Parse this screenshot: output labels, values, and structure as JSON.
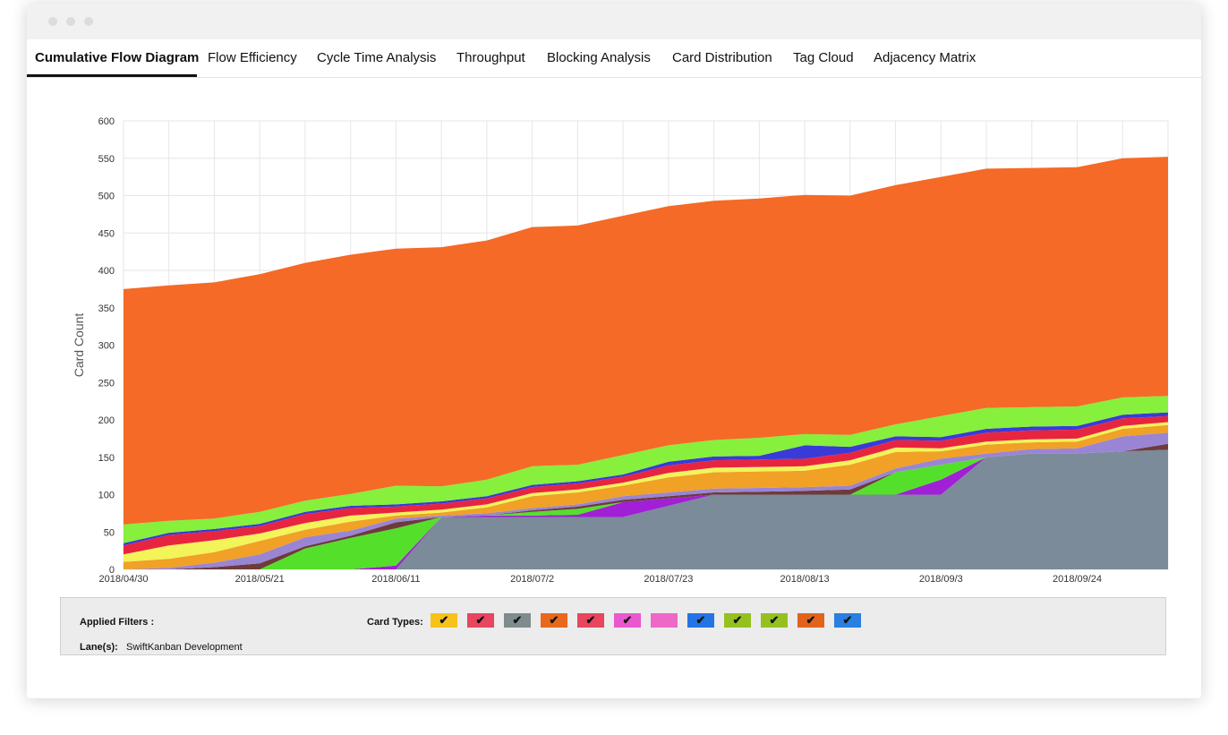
{
  "tabs": [
    {
      "label": "Cumulative Flow Diagram",
      "active": true
    },
    {
      "label": "Flow Efficiency",
      "active": false
    },
    {
      "label": "Cycle Time Analysis",
      "active": false
    },
    {
      "label": "Throughput",
      "active": false
    },
    {
      "label": "Blocking Analysis",
      "active": false
    },
    {
      "label": "Card Distribution",
      "active": false
    },
    {
      "label": "Tag Cloud",
      "active": false
    },
    {
      "label": "Adjacency Matrix",
      "active": false
    }
  ],
  "filters": {
    "applied_label": "Applied Filters :",
    "card_types_label": "Card Types:",
    "lanes_label": "Lane(s):",
    "lanes_value": "SwiftKanban Development",
    "card_types": [
      {
        "color": "#f7c21a",
        "checked": true
      },
      {
        "color": "#e8455f",
        "checked": true
      },
      {
        "color": "#7f8c8d",
        "checked": true
      },
      {
        "color": "#e8691e",
        "checked": true
      },
      {
        "color": "#e8455f",
        "checked": true
      },
      {
        "color": "#ea58cf",
        "checked": true
      },
      {
        "color": "#ee68c8",
        "checked": false
      },
      {
        "color": "#2474e6",
        "checked": true
      },
      {
        "color": "#94c11f",
        "checked": true
      },
      {
        "color": "#94c11f",
        "checked": true
      },
      {
        "color": "#e2641c",
        "checked": true
      },
      {
        "color": "#2a7fe0",
        "checked": true
      }
    ]
  },
  "chart_data": {
    "type": "area",
    "stacked": true,
    "ylabel": "Card Count",
    "xlabel": "",
    "ylim": [
      0,
      600
    ],
    "yticks": [
      0,
      50,
      100,
      150,
      200,
      250,
      300,
      350,
      400,
      450,
      500,
      550,
      600
    ],
    "grid": true,
    "x": [
      "2018/04/30",
      "2018/05/07",
      "2018/05/14",
      "2018/05/21",
      "2018/05/28",
      "2018/06/04",
      "2018/06/11",
      "2018/06/18",
      "2018/06/25",
      "2018/07/2",
      "2018/07/09",
      "2018/07/16",
      "2018/07/23",
      "2018/07/30",
      "2018/08/06",
      "2018/08/13",
      "2018/08/20",
      "2018/08/27",
      "2018/09/03",
      "2018/09/10",
      "2018/09/17",
      "2018/09/24",
      "2018/10/01",
      "2018/10/08"
    ],
    "xtick_labels": [
      {
        "index": 0,
        "label": "2018/04/30"
      },
      {
        "index": 3,
        "label": "2018/05/21"
      },
      {
        "index": 6,
        "label": "2018/06/11"
      },
      {
        "index": 9,
        "label": "2018/07/2"
      },
      {
        "index": 12,
        "label": "2018/07/23"
      },
      {
        "index": 15,
        "label": "2018/08/13"
      },
      {
        "index": 18,
        "label": "2018/09/3"
      },
      {
        "index": 21,
        "label": "2018/09/24"
      }
    ],
    "series": [
      {
        "color": "#7b8b99",
        "values": [
          0,
          0,
          0,
          0,
          0,
          0,
          0,
          70,
          70,
          70,
          70,
          70,
          85,
          100,
          100,
          100,
          100,
          100,
          100,
          150,
          155,
          155,
          158,
          160
        ]
      },
      {
        "color": "#a11fd6",
        "values": [
          0,
          0,
          0,
          0,
          0,
          0,
          5,
          0,
          2,
          2,
          3,
          20,
          10,
          0,
          0,
          0,
          0,
          0,
          20,
          0,
          0,
          0,
          0,
          0
        ]
      },
      {
        "color": "#54e02a",
        "values": [
          0,
          0,
          0,
          0,
          28,
          42,
          50,
          0,
          0,
          5,
          8,
          0,
          0,
          0,
          0,
          0,
          0,
          30,
          20,
          0,
          0,
          0,
          0,
          0
        ]
      },
      {
        "color": "#6e3b3b",
        "values": [
          0,
          0,
          3,
          8,
          3,
          3,
          8,
          0,
          0,
          2,
          3,
          3,
          3,
          3,
          4,
          5,
          7,
          0,
          0,
          0,
          0,
          0,
          0,
          8
        ]
      },
      {
        "color": "#9a85d4",
        "values": [
          0,
          2,
          6,
          12,
          12,
          7,
          5,
          2,
          3,
          3,
          3,
          5,
          5,
          5,
          5,
          5,
          5,
          5,
          8,
          5,
          6,
          7,
          20,
          15
        ]
      },
      {
        "color": "#f0a126",
        "values": [
          10,
          12,
          14,
          18,
          10,
          12,
          4,
          4,
          8,
          16,
          16,
          14,
          20,
          22,
          22,
          22,
          28,
          22,
          10,
          12,
          9,
          9,
          10,
          10
        ]
      },
      {
        "color": "#f3f35a",
        "values": [
          10,
          18,
          16,
          10,
          9,
          8,
          4,
          4,
          4,
          4,
          4,
          4,
          6,
          6,
          6,
          6,
          6,
          6,
          4,
          4,
          4,
          4,
          4,
          4
        ]
      },
      {
        "color": "#e8253f",
        "values": [
          12,
          14,
          12,
          10,
          12,
          10,
          8,
          8,
          8,
          8,
          8,
          8,
          10,
          10,
          10,
          10,
          10,
          10,
          10,
          12,
          12,
          12,
          10,
          8
        ]
      },
      {
        "color": "#3a3ad8",
        "values": [
          3,
          3,
          3,
          3,
          3,
          3,
          3,
          3,
          3,
          3,
          3,
          3,
          5,
          5,
          5,
          18,
          8,
          5,
          5,
          5,
          5,
          5,
          5,
          5
        ]
      },
      {
        "color": "#86f03c",
        "values": [
          25,
          16,
          14,
          16,
          15,
          16,
          25,
          20,
          22,
          25,
          22,
          26,
          22,
          22,
          24,
          15,
          16,
          16,
          28,
          28,
          26,
          26,
          23,
          22
        ]
      },
      {
        "color": "#f56a26",
        "values": [
          315,
          315,
          316,
          318,
          318,
          320,
          317,
          320,
          320,
          320,
          320,
          320,
          320,
          320,
          320,
          320,
          320,
          320,
          320,
          320,
          320,
          320,
          320,
          320
        ]
      }
    ]
  }
}
